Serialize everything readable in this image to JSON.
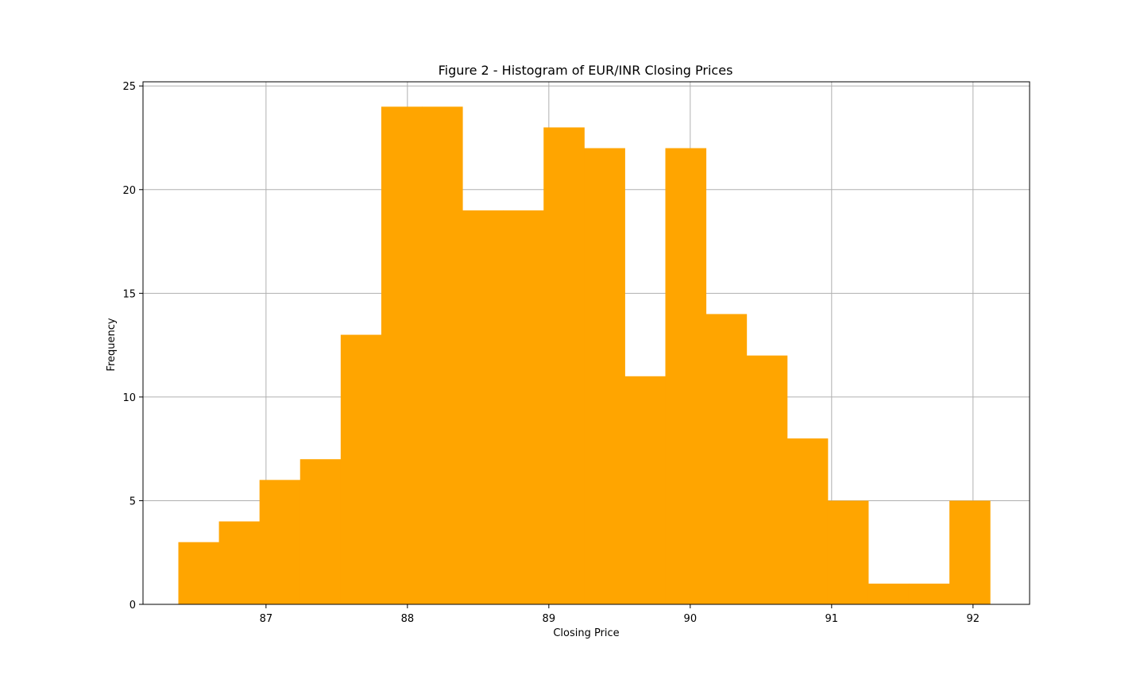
{
  "chart_data": {
    "type": "bar",
    "title": "Figure 2 - Histogram of EUR/INR Closing Prices",
    "xlabel": "Closing Price",
    "ylabel": "Frequency",
    "bar_color": "#ffa500",
    "grid": true,
    "bin_edges": [
      86.38,
      86.667,
      86.954,
      87.241,
      87.528,
      87.815,
      88.102,
      88.389,
      88.676,
      88.963,
      89.25,
      89.537,
      89.824,
      90.111,
      90.398,
      90.685,
      90.972,
      91.259,
      91.546,
      91.833,
      92.12
    ],
    "counts": [
      3,
      4,
      6,
      7,
      13,
      24,
      24,
      19,
      19,
      23,
      22,
      11,
      22,
      14,
      12,
      8,
      5,
      1,
      1,
      5
    ],
    "xlim": [
      86.13,
      92.4
    ],
    "ylim": [
      0,
      25.2
    ],
    "x_ticks": [
      "87",
      "88",
      "89",
      "90",
      "91",
      "92"
    ],
    "y_ticks": [
      "0",
      "5",
      "10",
      "15",
      "20",
      "25"
    ]
  }
}
